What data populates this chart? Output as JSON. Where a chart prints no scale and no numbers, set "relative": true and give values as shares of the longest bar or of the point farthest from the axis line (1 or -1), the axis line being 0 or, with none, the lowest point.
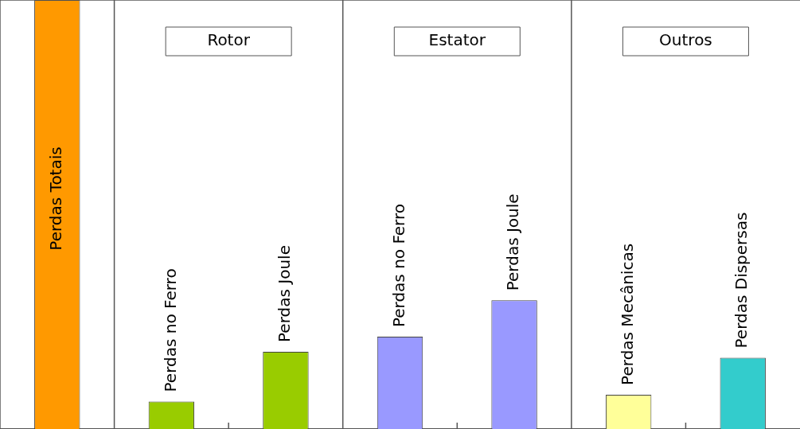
{
  "chart_data": {
    "type": "bar",
    "relative": true,
    "categories": [
      "Perdas Totais",
      "Perdas no Ferro",
      "Perdas Joule",
      "Perdas no Ferro",
      "Perdas Joule",
      "Perdas Mecânicas",
      "Perdas Dispersas"
    ],
    "values": [
      1,
      0.064,
      0.18,
      0.215,
      0.3,
      0.08,
      0.166
    ],
    "colors": [
      "#ff9900",
      "#99cc00",
      "#99cc00",
      "#9999ff",
      "#9999ff",
      "#ffff99",
      "#33cccc"
    ],
    "annotations": [
      "Rotor",
      "Estator",
      "Outros"
    ],
    "legend": false,
    "grid": false
  }
}
